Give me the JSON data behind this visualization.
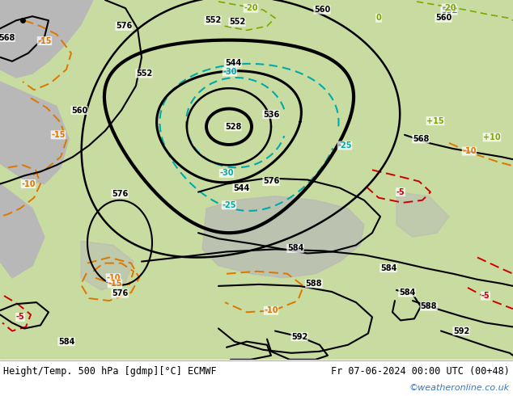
{
  "title_left": "Height/Temp. 500 hPa [gdmp][°C] ECMWF",
  "title_right": "Fr 07-06-2024 00:00 UTC (00+48)",
  "credit": "©weatheronline.co.uk",
  "color_land": "#c8dba0",
  "color_sea": "#b8b8b8",
  "color_black": "#000000",
  "color_cyan": "#00aaaa",
  "color_orange": "#dd7700",
  "color_red": "#cc0000",
  "color_green": "#77aa00",
  "color_credit": "#3377cc",
  "fig_width": 6.34,
  "fig_height": 4.9,
  "dpi": 100
}
